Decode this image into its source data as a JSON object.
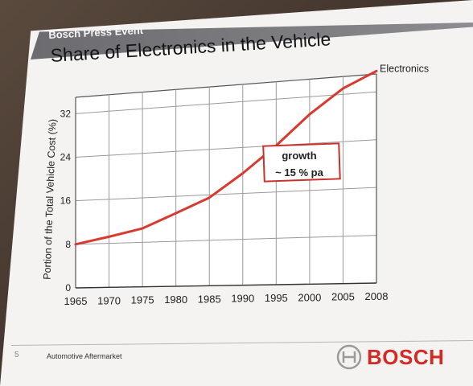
{
  "slide": {
    "event_label": "Bosch Press Event",
    "title": "Share of Electronics in the Vehicle",
    "page_number": "5",
    "footer_text": "Automotive Aftermarket",
    "brand": "BOSCH"
  },
  "colors": {
    "line": "#d93a30",
    "callout_border": "#c9302a",
    "brand_red": "#d32b23",
    "header_gray": "#75747a"
  },
  "chart_data": {
    "type": "line",
    "ylabel": "Portion of the Total Vehicle Cost (%)",
    "xlabel": "",
    "x_tick_labels": [
      "1965",
      "1970",
      "1975",
      "1980",
      "1985",
      "1990",
      "1995",
      "2000",
      "2005",
      "2008"
    ],
    "y_ticks": [
      0,
      8,
      16,
      24,
      32
    ],
    "ylim": [
      0,
      35
    ],
    "grid": true,
    "series": [
      {
        "name": "Electronics",
        "x": [
          "1965",
          "1970",
          "1975",
          "1980",
          "1985",
          "1990",
          "1995",
          "2000",
          "2005",
          "2008"
        ],
        "values": [
          8,
          9.2,
          10.5,
          13,
          15.5,
          19.5,
          24,
          29,
          33,
          35.5
        ]
      }
    ],
    "annotation": {
      "line1": "growth",
      "line2": "~ 15 % pa"
    }
  }
}
